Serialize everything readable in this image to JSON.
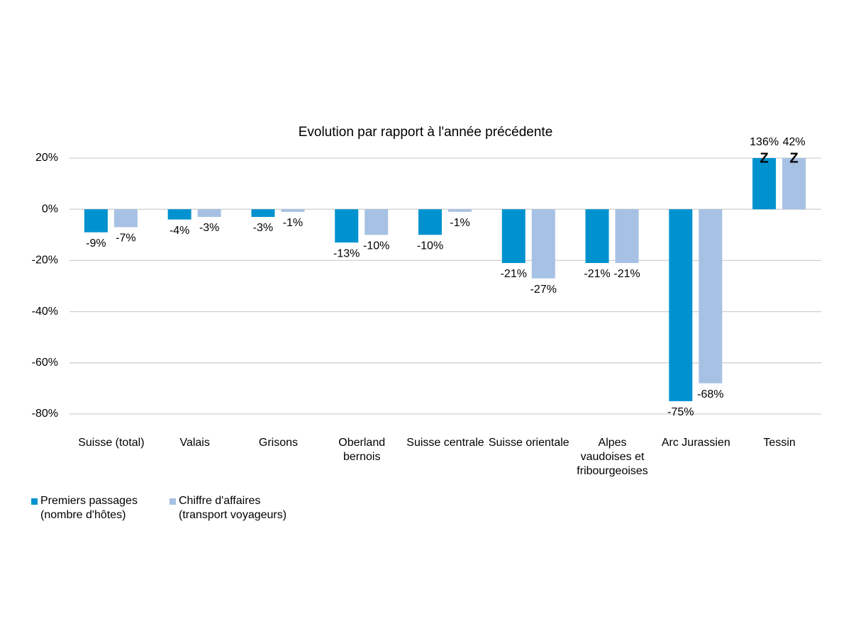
{
  "chart_data": {
    "type": "bar",
    "title": "Evolution par rapport à l'année précédente",
    "categories": [
      "Suisse (total)",
      "Valais",
      "Grisons",
      "Oberland bernois",
      "Suisse centrale",
      "Suisse orientale",
      "Alpes vaudoises et fribourgeoises",
      "Arc Jurassien",
      "Tessin"
    ],
    "series": [
      {
        "name": "Premiers passages (nombre d'hôtes)",
        "color": "#0092cf",
        "values": [
          -9,
          -4,
          -3,
          -13,
          -10,
          -21,
          -21,
          -75,
          136
        ],
        "value_labels": [
          "-9%",
          "-4%",
          "-3%",
          "-13%",
          "-10%",
          "-21%",
          "-21%",
          "-75%",
          "136%"
        ]
      },
      {
        "name": "Chiffre d'affaires (transport voyageurs)",
        "color": "#a6c1e3",
        "values": [
          -7,
          -3,
          -1,
          -10,
          -1,
          -27,
          -21,
          -68,
          42
        ],
        "value_labels": [
          "-7%",
          "-3%",
          "-1%",
          "-10%",
          "-1%",
          "-27%",
          "-21%",
          "-68%",
          "42%"
        ]
      }
    ],
    "annotations": [
      "Z",
      "Z"
    ],
    "ylim": [
      -80,
      20
    ],
    "yticks": [
      {
        "value": -80,
        "label": "-80%"
      },
      {
        "value": -60,
        "label": "-60%"
      },
      {
        "value": -40,
        "label": "-40%"
      },
      {
        "value": -20,
        "label": "-20%"
      },
      {
        "value": 0,
        "label": "0%"
      },
      {
        "value": 20,
        "label": "20%"
      }
    ],
    "grid": true,
    "legend": "bottom-left"
  }
}
